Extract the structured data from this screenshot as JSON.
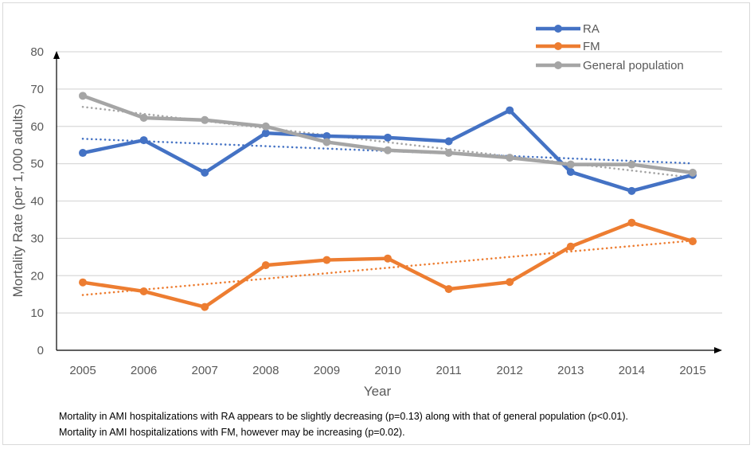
{
  "chart_data": {
    "type": "line",
    "title": "",
    "xlabel": "Year",
    "ylabel": "Mortality Rate (per 1,000 adults)",
    "ylim": [
      0,
      80
    ],
    "yticks": [
      0,
      10,
      20,
      30,
      40,
      50,
      60,
      70,
      80
    ],
    "grid": true,
    "legend_position": "top-right",
    "categories": [
      "2005",
      "2006",
      "2007",
      "2008",
      "2009",
      "2010",
      "2011",
      "2012",
      "2013",
      "2014",
      "2015"
    ],
    "series": [
      {
        "name": "RA",
        "color": "#4472C4",
        "values": [
          52.9,
          56.3,
          47.6,
          58.2,
          57.4,
          57.0,
          56.0,
          64.3,
          47.8,
          42.7,
          47.0
        ],
        "trendline": "linear"
      },
      {
        "name": "FM",
        "color": "#ED7D31",
        "values": [
          18.2,
          15.8,
          11.6,
          22.8,
          24.2,
          24.6,
          16.4,
          18.3,
          27.8,
          34.2,
          29.2
        ],
        "trendline": "linear"
      },
      {
        "name": "General population",
        "color": "#A5A5A5",
        "values": [
          68.2,
          62.3,
          61.7,
          60.0,
          55.8,
          53.6,
          52.9,
          51.6,
          49.8,
          49.8,
          47.6
        ],
        "trendline": "linear"
      }
    ],
    "annotations": [
      "Mortality in AMI hospitalizations with RA appears to be slightly decreasing (p=0.13) along with that of general population (p<0.01).",
      "Mortality in AMI hospitalizations with FM, however may be increasing (p=0.02)."
    ]
  }
}
